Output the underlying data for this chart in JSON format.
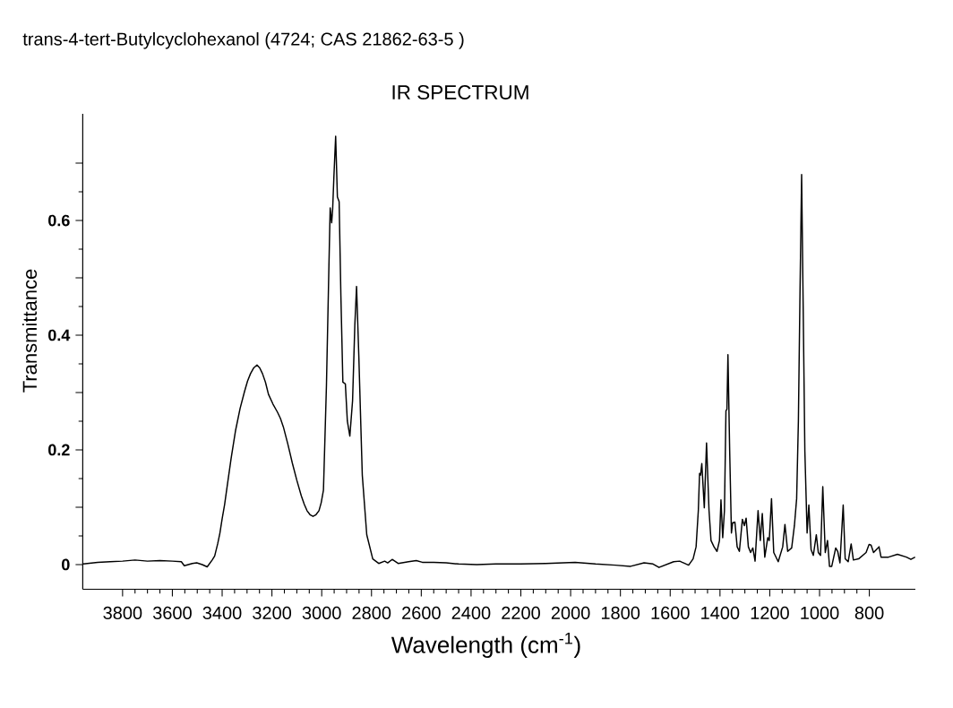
{
  "chart_data": {
    "type": "line",
    "title": "trans-4-tert-Butylcyclohexanol (4724; CAS 21862-63-5 )",
    "subtitle": "IR SPECTRUM",
    "xlabel": "Wavelength (cm$^{-1}$)",
    "ylabel": "Transmittance",
    "xlim": [
      3960,
      615
    ],
    "ylim": [
      -0.043,
      0.786
    ],
    "xticks": [
      3800,
      3600,
      3400,
      3200,
      3000,
      2800,
      2600,
      2400,
      2200,
      2000,
      1800,
      1600,
      1400,
      1200,
      1000,
      800
    ],
    "yticks": [
      0,
      {
        "value": 0.1,
        "label": null
      },
      0.2,
      {
        "value": 0.3,
        "label": null
      },
      0.4,
      {
        "value": 0.5,
        "label": null
      },
      0.6,
      {
        "value": 0.7,
        "label": null
      }
    ],
    "color": "#000000",
    "marker": "none",
    "line_style": "solid",
    "x": [
      3958,
      3900,
      3850,
      3800,
      3750,
      3700,
      3650,
      3600,
      3564,
      3552,
      3520,
      3502,
      3480,
      3460,
      3440,
      3430,
      3418,
      3409,
      3400,
      3390,
      3382,
      3364,
      3346,
      3328,
      3310,
      3298,
      3286,
      3273,
      3260,
      3249,
      3238,
      3226,
      3214,
      3196,
      3178,
      3166,
      3154,
      3136,
      3118,
      3100,
      3082,
      3070,
      3059,
      3047,
      3035,
      3023,
      3011,
      3002,
      2993,
      2981,
      2971,
      2966,
      2960,
      2956,
      2951,
      2944,
      2937,
      2930,
      2923,
      2915,
      2905,
      2897,
      2887,
      2876,
      2867,
      2860,
      2851,
      2837,
      2819,
      2795,
      2771,
      2747,
      2735,
      2717,
      2693,
      2651,
      2620,
      2596,
      2550,
      2500,
      2450,
      2377,
      2300,
      2201,
      2100,
      1982,
      1900,
      1820,
      1759,
      1705,
      1669,
      1645,
      1586,
      1562,
      1526,
      1508,
      1496,
      1487,
      1482,
      1478,
      1473,
      1463,
      1454,
      1444,
      1436,
      1424,
      1412,
      1402,
      1396,
      1389,
      1382,
      1376,
      1372,
      1368,
      1361,
      1354,
      1349,
      1340,
      1331,
      1322,
      1310,
      1302,
      1295,
      1286,
      1277,
      1268,
      1259,
      1247,
      1238,
      1230,
      1220,
      1208,
      1202,
      1193,
      1184,
      1166,
      1148,
      1139,
      1128,
      1112,
      1101,
      1092,
      1085,
      1079,
      1072,
      1066,
      1059,
      1050,
      1043,
      1034,
      1025,
      1013,
      1005,
      996,
      987,
      977,
      968,
      960,
      951,
      935,
      927,
      918,
      905,
      897,
      885,
      873,
      864,
      843,
      813,
      801,
      793,
      783,
      761,
      753,
      723,
      687,
      651,
      633,
      616
    ],
    "values": [
      0.001,
      0.004,
      0.005,
      0.006,
      0.008,
      0.006,
      0.007,
      0.006,
      0.005,
      -0.002,
      0.002,
      0.003,
      0.0,
      -0.004,
      0.008,
      0.015,
      0.036,
      0.055,
      0.08,
      0.105,
      0.13,
      0.185,
      0.234,
      0.272,
      0.302,
      0.32,
      0.333,
      0.343,
      0.348,
      0.343,
      0.333,
      0.318,
      0.297,
      0.28,
      0.266,
      0.255,
      0.24,
      0.21,
      0.177,
      0.147,
      0.12,
      0.105,
      0.094,
      0.087,
      0.084,
      0.087,
      0.094,
      0.108,
      0.13,
      0.312,
      0.521,
      0.622,
      0.596,
      0.62,
      0.677,
      0.747,
      0.641,
      0.633,
      0.469,
      0.318,
      0.315,
      0.25,
      0.224,
      0.286,
      0.417,
      0.485,
      0.365,
      0.156,
      0.052,
      0.01,
      0.002,
      0.006,
      0.003,
      0.009,
      0.002,
      0.005,
      0.007,
      0.004,
      0.004,
      0.003,
      0.001,
      0.0,
      0.001,
      0.001,
      0.002,
      0.004,
      0.001,
      -0.001,
      -0.003,
      0.003,
      0.001,
      -0.005,
      0.005,
      0.006,
      -0.001,
      0.01,
      0.031,
      0.094,
      0.159,
      0.156,
      0.176,
      0.099,
      0.212,
      0.094,
      0.042,
      0.031,
      0.023,
      0.042,
      0.113,
      0.047,
      0.094,
      0.268,
      0.271,
      0.366,
      0.198,
      0.055,
      0.073,
      0.074,
      0.031,
      0.023,
      0.079,
      0.068,
      0.081,
      0.031,
      0.021,
      0.029,
      0.006,
      0.094,
      0.042,
      0.089,
      0.013,
      0.047,
      0.042,
      0.115,
      0.021,
      0.005,
      0.031,
      0.07,
      0.023,
      0.029,
      0.068,
      0.115,
      0.25,
      0.458,
      0.68,
      0.458,
      0.198,
      0.055,
      0.104,
      0.026,
      0.016,
      0.052,
      0.021,
      0.016,
      0.136,
      0.021,
      0.042,
      -0.003,
      -0.003,
      0.029,
      0.023,
      0.003,
      0.104,
      0.01,
      0.005,
      0.036,
      0.008,
      0.01,
      0.021,
      0.035,
      0.034,
      0.021,
      0.031,
      0.013,
      0.013,
      0.018,
      0.013,
      0.009,
      0.013
    ]
  }
}
